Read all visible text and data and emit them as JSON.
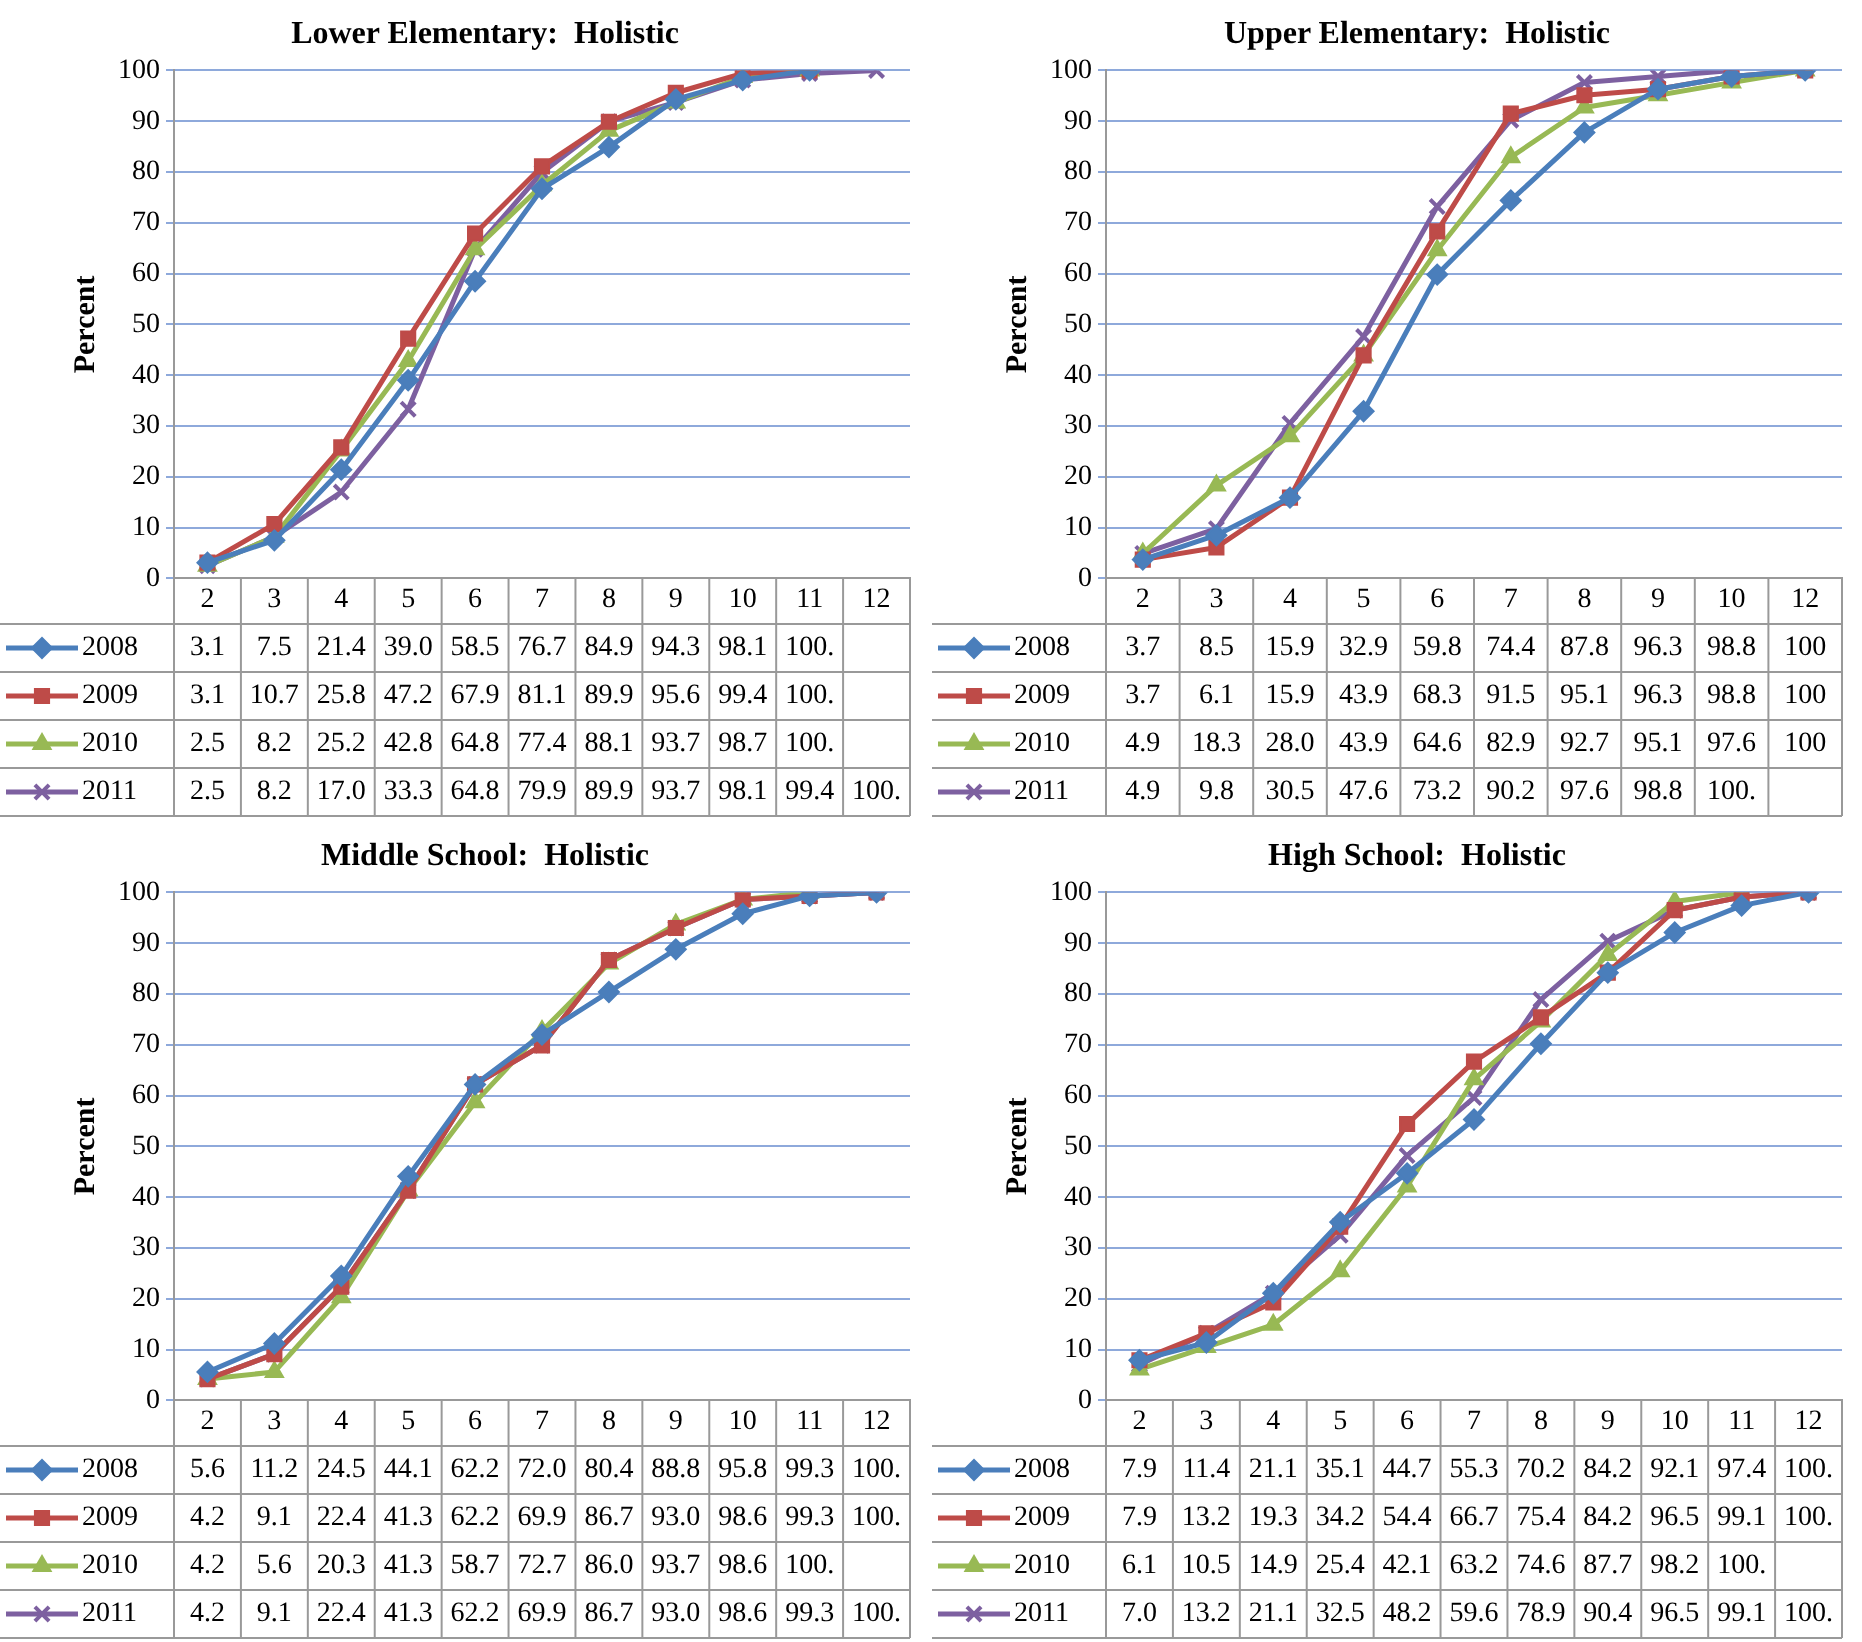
{
  "chart_data": [
    {
      "type": "line",
      "title": "Lower Elementary:  Holistic",
      "ylabel": "Percent",
      "categories": [
        "2",
        "3",
        "4",
        "5",
        "6",
        "7",
        "8",
        "9",
        "10",
        "11",
        "12"
      ],
      "ylim": [
        0,
        100
      ],
      "yticks": [
        0,
        10,
        20,
        30,
        40,
        50,
        60,
        70,
        80,
        90,
        100
      ],
      "grid": "y",
      "legend": "bottom",
      "series": [
        {
          "name": "2008",
          "color": "#4a7ebb",
          "marker": "diamond",
          "values": [
            3.1,
            7.5,
            21.4,
            39.0,
            58.5,
            76.7,
            84.9,
            94.3,
            98.1,
            100,
            null
          ],
          "value_labels": [
            "3.1",
            "7.5",
            "21.4",
            "39.0",
            "58.5",
            "76.7",
            "84.9",
            "94.3",
            "98.1",
            "100.",
            null
          ]
        },
        {
          "name": "2009",
          "color": "#be4b48",
          "marker": "square",
          "values": [
            3.1,
            10.7,
            25.8,
            47.2,
            67.9,
            81.1,
            89.9,
            95.6,
            99.4,
            100,
            null
          ],
          "value_labels": [
            "3.1",
            "10.7",
            "25.8",
            "47.2",
            "67.9",
            "81.1",
            "89.9",
            "95.6",
            "99.4",
            "100.",
            null
          ]
        },
        {
          "name": "2010",
          "color": "#98b954",
          "marker": "triangle",
          "values": [
            2.5,
            8.2,
            25.2,
            42.8,
            64.8,
            77.4,
            88.1,
            93.7,
            98.7,
            100,
            null
          ],
          "value_labels": [
            "2.5",
            "8.2",
            "25.2",
            "42.8",
            "64.8",
            "77.4",
            "88.1",
            "93.7",
            "98.7",
            "100.",
            null
          ]
        },
        {
          "name": "2011",
          "color": "#7d60a0",
          "marker": "cross",
          "values": [
            2.5,
            8.2,
            17.0,
            33.3,
            64.8,
            79.9,
            89.9,
            93.7,
            98.1,
            99.4,
            100
          ],
          "value_labels": [
            "2.5",
            "8.2",
            "17.0",
            "33.3",
            "64.8",
            "79.9",
            "89.9",
            "93.7",
            "98.1",
            "99.4",
            "100."
          ]
        }
      ]
    },
    {
      "type": "line",
      "title": "Upper Elementary:  Holistic",
      "ylabel": "Percent",
      "categories": [
        "2",
        "3",
        "4",
        "5",
        "6",
        "7",
        "8",
        "9",
        "10",
        "12"
      ],
      "ylim": [
        0,
        100
      ],
      "yticks": [
        0,
        10,
        20,
        30,
        40,
        50,
        60,
        70,
        80,
        90,
        100
      ],
      "grid": "y",
      "legend": "bottom",
      "series": [
        {
          "name": "2008",
          "color": "#4a7ebb",
          "marker": "diamond",
          "values": [
            3.7,
            8.5,
            15.9,
            32.9,
            59.8,
            74.4,
            87.8,
            96.3,
            98.8,
            100
          ],
          "value_labels": [
            "3.7",
            "8.5",
            "15.9",
            "32.9",
            "59.8",
            "74.4",
            "87.8",
            "96.3",
            "98.8",
            "100"
          ]
        },
        {
          "name": "2009",
          "color": "#be4b48",
          "marker": "square",
          "values": [
            3.7,
            6.1,
            15.9,
            43.9,
            68.3,
            91.5,
            95.1,
            96.3,
            98.8,
            100
          ],
          "value_labels": [
            "3.7",
            "6.1",
            "15.9",
            "43.9",
            "68.3",
            "91.5",
            "95.1",
            "96.3",
            "98.8",
            "100"
          ]
        },
        {
          "name": "2010",
          "color": "#98b954",
          "marker": "triangle",
          "values": [
            4.9,
            18.3,
            28.0,
            43.9,
            64.6,
            82.9,
            92.7,
            95.1,
            97.6,
            100
          ],
          "value_labels": [
            "4.9",
            "18.3",
            "28.0",
            "43.9",
            "64.6",
            "82.9",
            "92.7",
            "95.1",
            "97.6",
            "100"
          ]
        },
        {
          "name": "2011",
          "color": "#7d60a0",
          "marker": "cross",
          "values": [
            4.9,
            9.8,
            30.5,
            47.6,
            73.2,
            90.2,
            97.6,
            98.8,
            100,
            null
          ],
          "value_labels": [
            "4.9",
            "9.8",
            "30.5",
            "47.6",
            "73.2",
            "90.2",
            "97.6",
            "98.8",
            "100.",
            null
          ]
        }
      ]
    },
    {
      "type": "line",
      "title": "Middle School:  Holistic",
      "ylabel": "Percent",
      "categories": [
        "2",
        "3",
        "4",
        "5",
        "6",
        "7",
        "8",
        "9",
        "10",
        "11",
        "12"
      ],
      "ylim": [
        0,
        100
      ],
      "yticks": [
        0,
        10,
        20,
        30,
        40,
        50,
        60,
        70,
        80,
        90,
        100
      ],
      "grid": "y",
      "legend": "bottom",
      "series": [
        {
          "name": "2008",
          "color": "#4a7ebb",
          "marker": "diamond",
          "values": [
            5.6,
            11.2,
            24.5,
            44.1,
            62.2,
            72.0,
            80.4,
            88.8,
            95.8,
            99.3,
            100
          ],
          "value_labels": [
            "5.6",
            "11.2",
            "24.5",
            "44.1",
            "62.2",
            "72.0",
            "80.4",
            "88.8",
            "95.8",
            "99.3",
            "100."
          ]
        },
        {
          "name": "2009",
          "color": "#be4b48",
          "marker": "square",
          "values": [
            4.2,
            9.1,
            22.4,
            41.3,
            62.2,
            69.9,
            86.7,
            93.0,
            98.6,
            99.3,
            100
          ],
          "value_labels": [
            "4.2",
            "9.1",
            "22.4",
            "41.3",
            "62.2",
            "69.9",
            "86.7",
            "93.0",
            "98.6",
            "99.3",
            "100."
          ]
        },
        {
          "name": "2010",
          "color": "#98b954",
          "marker": "triangle",
          "values": [
            4.2,
            5.6,
            20.3,
            41.3,
            58.7,
            72.7,
            86.0,
            93.7,
            98.6,
            100,
            null
          ],
          "value_labels": [
            "4.2",
            "5.6",
            "20.3",
            "41.3",
            "58.7",
            "72.7",
            "86.0",
            "93.7",
            "98.6",
            "100.",
            null
          ]
        },
        {
          "name": "2011",
          "color": "#7d60a0",
          "marker": "cross",
          "values": [
            4.2,
            9.1,
            22.4,
            41.3,
            62.2,
            69.9,
            86.7,
            93.0,
            98.6,
            99.3,
            100
          ],
          "value_labels": [
            "4.2",
            "9.1",
            "22.4",
            "41.3",
            "62.2",
            "69.9",
            "86.7",
            "93.0",
            "98.6",
            "99.3",
            "100."
          ]
        }
      ]
    },
    {
      "type": "line",
      "title": "High School:  Holistic",
      "ylabel": "Percent",
      "categories": [
        "2",
        "3",
        "4",
        "5",
        "6",
        "7",
        "8",
        "9",
        "10",
        "11",
        "12"
      ],
      "ylim": [
        0,
        100
      ],
      "yticks": [
        0,
        10,
        20,
        30,
        40,
        50,
        60,
        70,
        80,
        90,
        100
      ],
      "grid": "y",
      "legend": "bottom",
      "series": [
        {
          "name": "2008",
          "color": "#4a7ebb",
          "marker": "diamond",
          "values": [
            7.9,
            11.4,
            21.1,
            35.1,
            44.7,
            55.3,
            70.2,
            84.2,
            92.1,
            97.4,
            100
          ],
          "value_labels": [
            "7.9",
            "11.4",
            "21.1",
            "35.1",
            "44.7",
            "55.3",
            "70.2",
            "84.2",
            "92.1",
            "97.4",
            "100."
          ]
        },
        {
          "name": "2009",
          "color": "#be4b48",
          "marker": "square",
          "values": [
            7.9,
            13.2,
            19.3,
            34.2,
            54.4,
            66.7,
            75.4,
            84.2,
            96.5,
            99.1,
            100
          ],
          "value_labels": [
            "7.9",
            "13.2",
            "19.3",
            "34.2",
            "54.4",
            "66.7",
            "75.4",
            "84.2",
            "96.5",
            "99.1",
            "100."
          ]
        },
        {
          "name": "2010",
          "color": "#98b954",
          "marker": "triangle",
          "values": [
            6.1,
            10.5,
            14.9,
            25.4,
            42.1,
            63.2,
            74.6,
            87.7,
            98.2,
            100,
            null
          ],
          "value_labels": [
            "6.1",
            "10.5",
            "14.9",
            "25.4",
            "42.1",
            "63.2",
            "74.6",
            "87.7",
            "98.2",
            "100.",
            null
          ]
        },
        {
          "name": "2011",
          "color": "#7d60a0",
          "marker": "cross",
          "values": [
            7.0,
            13.2,
            21.1,
            32.5,
            48.2,
            59.6,
            78.9,
            90.4,
            96.5,
            99.1,
            100
          ],
          "value_labels": [
            "7.0",
            "13.2",
            "21.1",
            "32.5",
            "48.2",
            "59.6",
            "78.9",
            "90.4",
            "96.5",
            "99.1",
            "100."
          ]
        }
      ]
    }
  ]
}
